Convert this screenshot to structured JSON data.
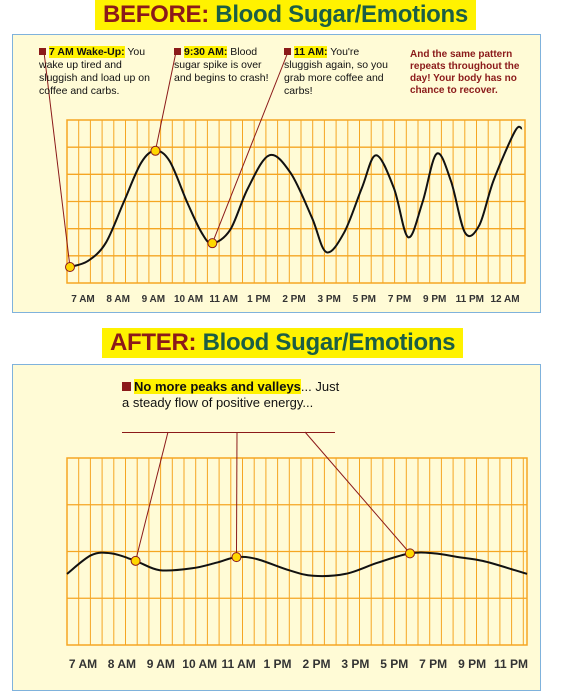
{
  "before_title": {
    "key": "BEFORE:",
    "rest": "Blood Sugar/Emotions"
  },
  "after_title": {
    "key": "AFTER:",
    "rest": "Blood Sugar/Emotions"
  },
  "before_notes": [
    {
      "key": "7 AM Wake-Up:",
      "text": "You wake up tired and sluggish and load up on coffee and carbs."
    },
    {
      "key": "9:30 AM:",
      "text": "Blood sugar spike is over and begins to crash!"
    },
    {
      "key": "11 AM:",
      "text": "You're sluggish again, so you grab more coffee and carbs!"
    }
  ],
  "before_summary": "And the same pattern repeats throughout the day! Your body has no chance to recover.",
  "after_note": {
    "key": "No more peaks and valleys",
    "text": "... Just a steady flow of positive energy..."
  },
  "colors": {
    "grid": "#f5a623",
    "curve": "#111111",
    "marker": "#ffd700",
    "callout": "#8b1a1a"
  },
  "chart_data": [
    {
      "type": "line",
      "title": "BEFORE: Blood Sugar/Emotions",
      "x_tick_labels": [
        "7 AM",
        "8 AM",
        "9 AM",
        "10 AM",
        "11 AM",
        "1 PM",
        "2 PM",
        "3 PM",
        "5 PM",
        "7 PM",
        "9 PM",
        "11 PM",
        "12 AM"
      ],
      "ylim": [
        0,
        100
      ],
      "grid": true,
      "series": [
        {
          "points": [
            [
              0.0,
              2
            ],
            [
              0.5,
              6
            ],
            [
              1.0,
              18
            ],
            [
              1.5,
              45
            ],
            [
              2.0,
              72
            ],
            [
              2.4,
              80
            ],
            [
              2.8,
              73
            ],
            [
              3.3,
              45
            ],
            [
              3.7,
              25
            ],
            [
              4.0,
              18
            ],
            [
              4.5,
              27
            ],
            [
              5.0,
              55
            ],
            [
              5.6,
              77
            ],
            [
              6.2,
              65
            ],
            [
              6.8,
              35
            ],
            [
              7.2,
              12
            ],
            [
              7.7,
              25
            ],
            [
              8.2,
              55
            ],
            [
              8.6,
              77
            ],
            [
              9.1,
              55
            ],
            [
              9.5,
              22
            ],
            [
              9.9,
              45
            ],
            [
              10.3,
              78
            ],
            [
              10.7,
              60
            ],
            [
              11.1,
              25
            ],
            [
              11.5,
              30
            ],
            [
              11.9,
              60
            ],
            [
              12.5,
              93
            ],
            [
              12.7,
              95
            ]
          ]
        }
      ],
      "markers": [
        {
          "x": 0.0,
          "y": 2,
          "label": "7 AM Wake-Up"
        },
        {
          "x": 2.4,
          "y": 80,
          "label": "9:30 AM"
        },
        {
          "x": 4.0,
          "y": 18,
          "label": "11 AM"
        }
      ]
    },
    {
      "type": "line",
      "title": "AFTER: Blood Sugar/Emotions",
      "x_tick_labels": [
        "7 AM",
        "8 AM",
        "9 AM",
        "10 AM",
        "11 AM",
        "1 PM",
        "2 PM",
        "3 PM",
        "5 PM",
        "7 PM",
        "9 PM",
        "11 PM"
      ],
      "ylim": [
        0,
        100
      ],
      "grid": true,
      "series": [
        {
          "points": [
            [
              -0.1,
              38
            ],
            [
              0.5,
              48
            ],
            [
              1.0,
              49
            ],
            [
              1.6,
              45
            ],
            [
              2.2,
              40
            ],
            [
              3.0,
              41
            ],
            [
              3.6,
              44
            ],
            [
              4.1,
              47
            ],
            [
              4.6,
              46
            ],
            [
              5.4,
              40
            ],
            [
              6.0,
              37
            ],
            [
              6.8,
              38
            ],
            [
              7.6,
              44
            ],
            [
              8.4,
              49
            ],
            [
              9.0,
              49
            ],
            [
              9.6,
              47
            ],
            [
              10.2,
              45
            ],
            [
              11.0,
              40
            ],
            [
              11.3,
              38
            ]
          ]
        }
      ],
      "markers": [
        {
          "x": 1.6,
          "y": 45
        },
        {
          "x": 4.1,
          "y": 47
        },
        {
          "x": 8.4,
          "y": 49
        }
      ]
    }
  ]
}
